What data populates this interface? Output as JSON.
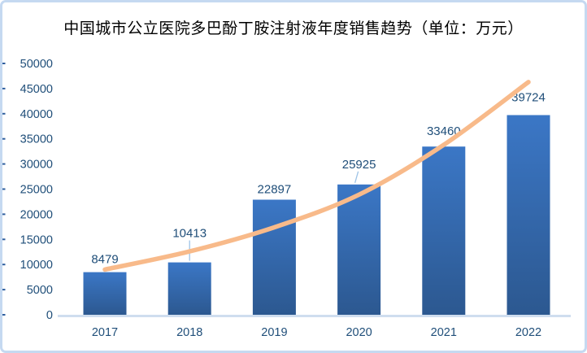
{
  "chart_data": {
    "type": "bar",
    "title": "中国城市公立医院多巴酚丁胺注射液年度销售趋势（单位：万元）",
    "categories": [
      "2017",
      "2018",
      "2019",
      "2020",
      "2021",
      "2022"
    ],
    "series": [
      {
        "name": "annual-sales-bars",
        "kind": "bar",
        "values": [
          8479,
          10413,
          22897,
          25925,
          33460,
          39724
        ],
        "data_labels": [
          "8479",
          "10413",
          "22897",
          "25925",
          "33460",
          "39724"
        ]
      },
      {
        "name": "trendline",
        "kind": "line",
        "smooth": true,
        "values": [
          9000,
          12600,
          17400,
          23900,
          33800,
          46300
        ]
      }
    ],
    "xlabel": "",
    "ylabel": "",
    "ylim": [
      0,
      50000
    ],
    "ytick_step": 5000,
    "yticks": [
      "0",
      "5000",
      "10000",
      "15000",
      "20000",
      "25000",
      "30000",
      "35000",
      "40000",
      "45000",
      "50000"
    ],
    "grid": false,
    "legend": "none",
    "colors": {
      "bar_top": "#3B77C6",
      "bar_bottom": "#2C5890",
      "trendline": "#F8BA8A",
      "label_text": "#1F4E79",
      "axis_line": "#CFDDEF",
      "leader_line": "#9DC3E6",
      "tick_mark": "#2E5E9E",
      "title_text": "#000000",
      "frame_border": "#C5D9F1"
    },
    "layout_hints": {
      "legend_position": "none",
      "label_offsets": [
        16,
        36,
        13,
        25,
        19,
        22
      ],
      "label_leaders": [
        {
          "index": 1,
          "shape": "vertical"
        },
        {
          "index": 3,
          "shape": "diagonal"
        }
      ]
    }
  }
}
